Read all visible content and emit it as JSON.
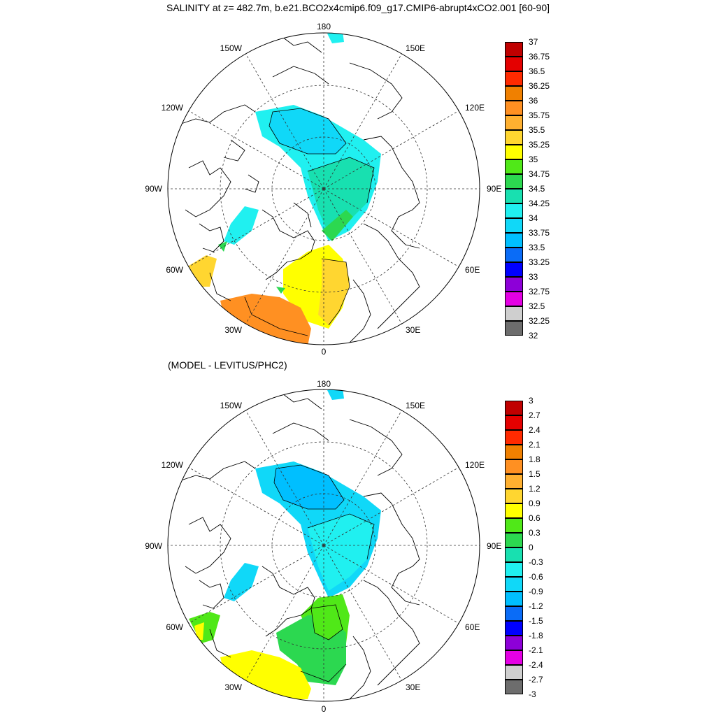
{
  "title": "SALINITY at z= 482.7m, b.e21.BCO2x4cmip6.f09_g17.CMIP6-abrupt4xCO2.001 [60-90]",
  "subtitle": "(MODEL - LEVITUS/PHC2)",
  "lon_labels": [
    "180",
    "150E",
    "120E",
    "90E",
    "60E",
    "30E",
    "0",
    "30W",
    "60W",
    "90W",
    "120W",
    "150W"
  ],
  "colors": {
    "palette": [
      "#6d6d6d",
      "#cfcfcf",
      "#e400e4",
      "#8d00d8",
      "#0000ff",
      "#0a6cf7",
      "#00bfff",
      "#10d8f8",
      "#20f0f0",
      "#18e0b0",
      "#2cd850",
      "#50e818",
      "#ffff00",
      "#ffd630",
      "#ffb030",
      "#ff9022",
      "#f08000",
      "#ff2a00",
      "#e40000",
      "#c00000"
    ],
    "land": "#ffffff",
    "coast": "#000000"
  },
  "top_colorbar": {
    "labels": [
      "37",
      "36.75",
      "36.5",
      "36.25",
      "36",
      "35.75",
      "35.5",
      "35.25",
      "35",
      "34.75",
      "34.5",
      "34.25",
      "34",
      "33.75",
      "33.5",
      "33.25",
      "33",
      "32.75",
      "32.5",
      "32.25",
      "32"
    ]
  },
  "bottom_colorbar": {
    "labels": [
      "3",
      "2.7",
      "2.4",
      "2.1",
      "1.8",
      "1.5",
      "1.2",
      "0.9",
      "0.6",
      "0.3",
      "0",
      "-0.3",
      "-0.6",
      "-0.9",
      "-1.2",
      "-1.5",
      "-1.8",
      "-2.1",
      "-2.4",
      "-2.7",
      "-3"
    ]
  }
}
